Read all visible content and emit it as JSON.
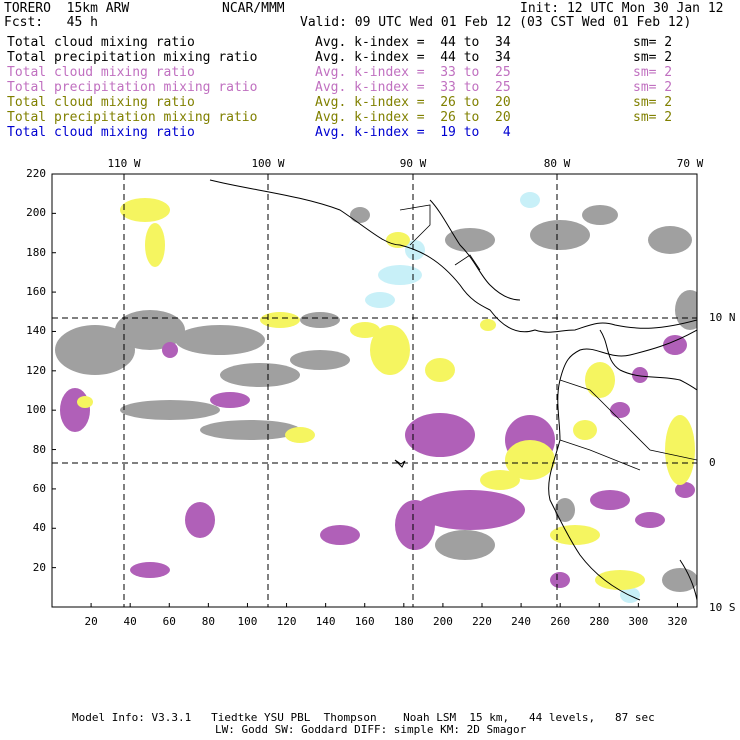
{
  "header": {
    "model": "TORERO  15km ARW",
    "org": "NCAR/MMM",
    "init": "Init: 12 UTC Mon 30 Jan 12",
    "fcst": "Fcst:   45 h",
    "valid": "Valid: 09 UTC Wed 01 Feb 12 (03 CST Wed 01 Feb 12)"
  },
  "legend": [
    {
      "field": "Total cloud mixing ratio",
      "index": "Avg. k-index =  44 to  34",
      "sm": "sm= 2",
      "color": "#000000"
    },
    {
      "field": "Total precipitation mixing ratio",
      "index": "Avg. k-index =  44 to  34",
      "sm": "sm= 2",
      "color": "#000000"
    },
    {
      "field": "Total cloud mixing ratio",
      "index": "Avg. k-index =  33 to  25",
      "sm": "sm= 2",
      "color": "#c070c0"
    },
    {
      "field": "Total precipitation mixing ratio",
      "index": "Avg. k-index =  33 to  25",
      "sm": "sm= 2",
      "color": "#c070c0"
    },
    {
      "field": "Total cloud mixing ratio",
      "index": "Avg. k-index =  26 to  20",
      "sm": "sm= 2",
      "color": "#808000"
    },
    {
      "field": "Total precipitation mixing ratio",
      "index": "Avg. k-index =  26 to  20",
      "sm": "sm= 2",
      "color": "#808000"
    },
    {
      "field": "Total cloud mixing ratio",
      "index": "Avg. k-index =  19 to   4",
      "sm": "",
      "color": "#0000d0"
    }
  ],
  "axes": {
    "y_ticks": [
      "20",
      "40",
      "60",
      "80",
      "100",
      "120",
      "140",
      "160",
      "180",
      "200",
      "220"
    ],
    "x_ticks": [
      "20",
      "40",
      "60",
      "80",
      "100",
      "120",
      "140",
      "160",
      "180",
      "200",
      "220",
      "240",
      "260",
      "280",
      "300",
      "320"
    ],
    "lon_labels": [
      "110 W",
      "100 W",
      "90 W",
      "80 W",
      "70 W"
    ],
    "lat_labels": [
      "10 N",
      "0",
      "10 S"
    ]
  },
  "footer": {
    "line1": "Model Info: V3.3.1   Tiedtke YSU PBL  Thompson    Noah LSM  15 km,   44 levels,   87 sec",
    "line2": "LW: Godd SW: Goddard DIFF: simple KM: 2D Smagor"
  },
  "colors": {
    "gray_cloud": "#a0a0a0",
    "purple_cloud": "#b060b8",
    "yellow_cloud": "#f5f560",
    "cyan_cloud": "#c8f0f8",
    "coastline": "#000000",
    "grid": "#000000"
  }
}
